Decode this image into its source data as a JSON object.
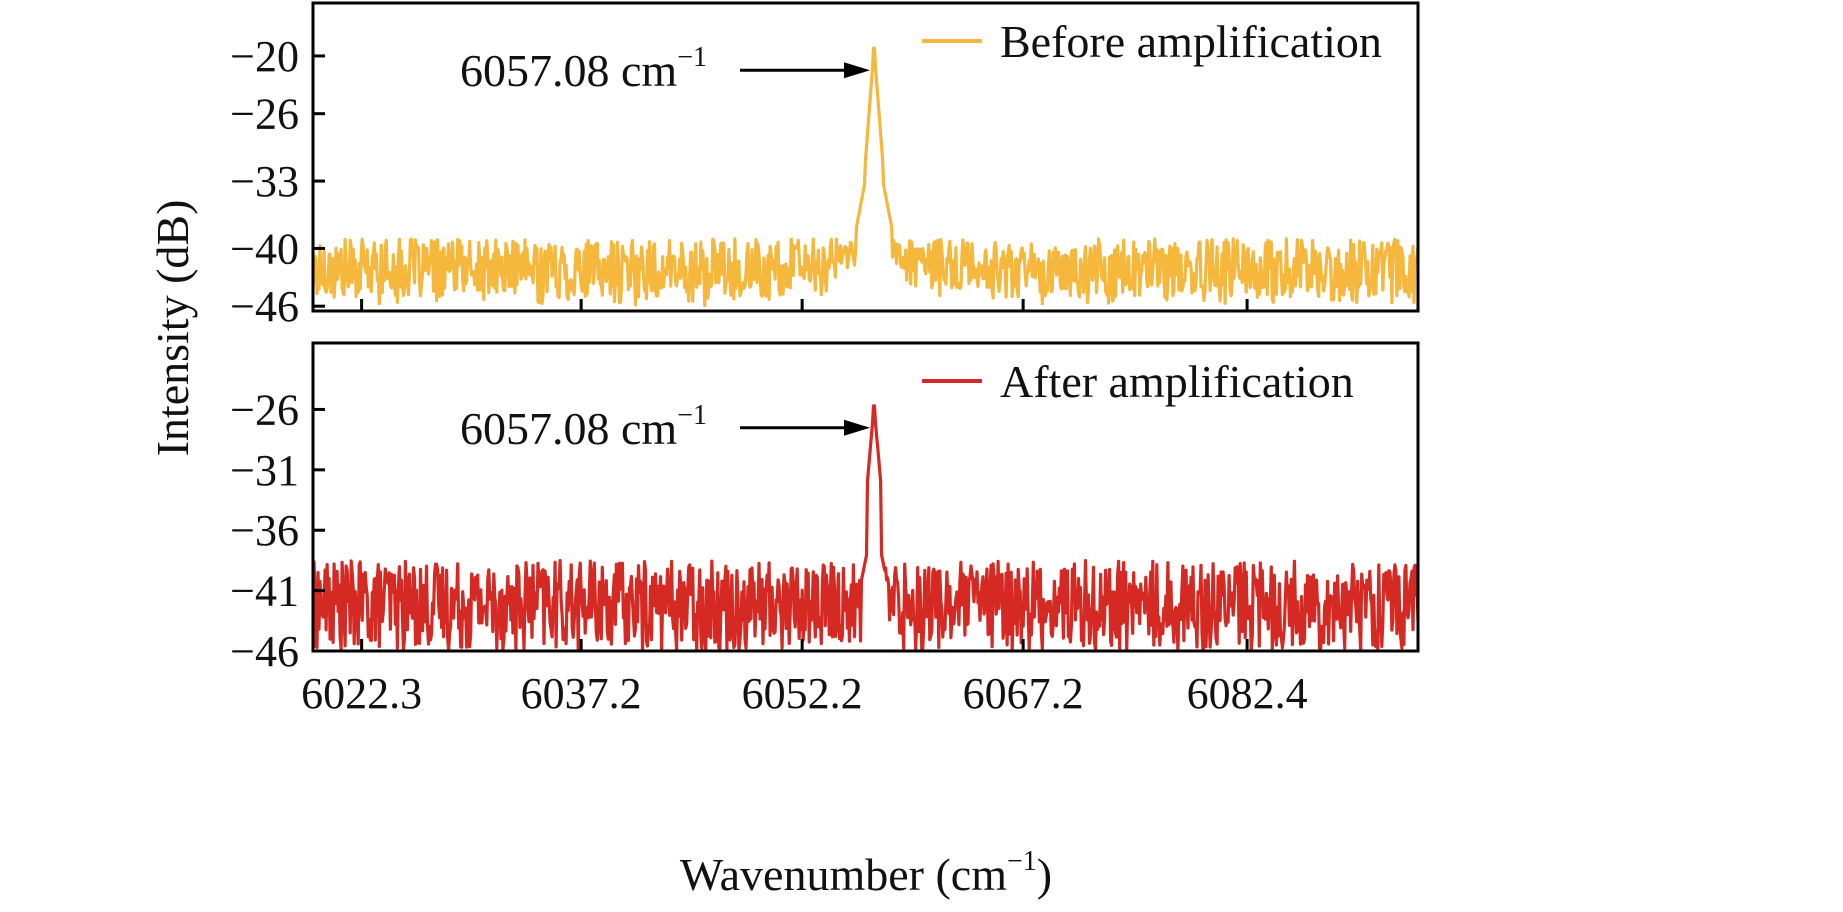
{
  "chart_data": {
    "type": "line",
    "layout": "two vertically stacked panels sharing the x axis",
    "xlabel": "Wavenumber (cm",
    "xlabel_sup": "−1",
    "xlabel_close": ")",
    "ylabel": "Intensity (dB)",
    "x_ticks": [
      6022.3,
      6037.2,
      6052.2,
      6067.2,
      6082.4
    ],
    "x_tick_labels": [
      "6022.3",
      "6037.2",
      "6052.2",
      "6067.2",
      "6082.4"
    ],
    "xlim": [
      6019,
      6094
    ],
    "grid": false,
    "panels": [
      {
        "series_name": "Before amplification",
        "color": "#f5b73c",
        "legend_position": "top-right",
        "ylim": [
          -46.5,
          -14.5
        ],
        "y_ticks": [
          -20,
          -26,
          -33,
          -40,
          -46
        ],
        "y_tick_labels": [
          "−20",
          "−26",
          "−33",
          "−40",
          "−46"
        ],
        "peak_x": 6057.08,
        "peak_y": -19.2,
        "noise_floor_range": [
          -46,
          -39
        ],
        "annotation": "6057.08 cm",
        "annotation_sup": "−1",
        "annotation_arrow": "points right to peak"
      },
      {
        "series_name": "After amplification",
        "color": "#d42a23",
        "legend_position": "top-right",
        "ylim": [
          -46,
          -20.5
        ],
        "y_ticks": [
          -26,
          -31,
          -36,
          -41,
          -46
        ],
        "y_tick_labels": [
          "−26",
          "−31",
          "−36",
          "−41",
          "−46"
        ],
        "peak_x": 6057.08,
        "peak_y": -25.7,
        "noise_floor_range": [
          -46,
          -38.5
        ],
        "annotation": "6057.08 cm",
        "annotation_sup": "−1",
        "annotation_arrow": "points right to peak"
      }
    ]
  }
}
